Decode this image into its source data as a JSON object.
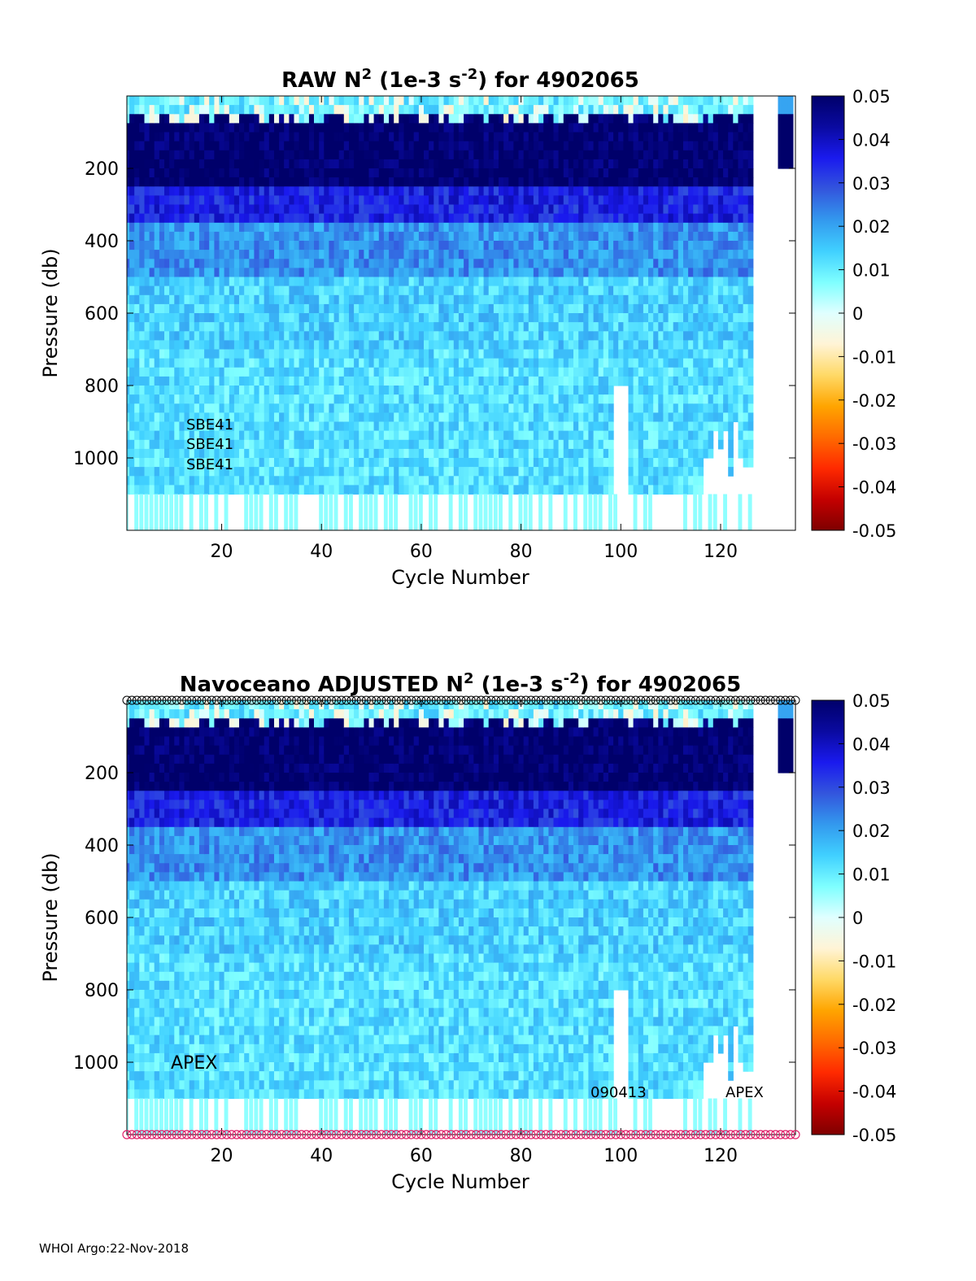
{
  "figure": {
    "footer": "WHOI Argo:22-Nov-2018"
  },
  "colorbar": {
    "ticks": [
      "0.05",
      "0.04",
      "0.03",
      "0.02",
      "0.01",
      "0",
      "-0.01",
      "-0.02",
      "-0.03",
      "-0.04",
      "-0.05"
    ],
    "colors": [
      "#7f0000",
      "#c40000",
      "#ff2a00",
      "#ff6a00",
      "#ffa500",
      "#ffd966",
      "#fff4d6",
      "#e0ffff",
      "#7fffff",
      "#40d0ff",
      "#3399ee",
      "#3355dd",
      "#1a1aee",
      "#0a0aa0",
      "#00006a"
    ]
  },
  "chart_data": [
    {
      "type": "heatmap",
      "title": "RAW N² (1e-3 s⁻²) for 4902065",
      "title_parts": {
        "lead": "RAW N",
        "sup1": "2",
        "mid": " (1e-3 s",
        "sup2": "-2",
        "tail": ") for 4902065"
      },
      "xlabel": "Cycle Number",
      "ylabel": "Pressure (db)",
      "xlim": [
        1,
        135
      ],
      "ylim": [
        0,
        1200
      ],
      "y_reversed": true,
      "xticks": [
        20,
        40,
        60,
        80,
        100,
        120
      ],
      "yticks": [
        200,
        400,
        600,
        800,
        1000
      ],
      "clim": [
        -0.05,
        0.05
      ],
      "colormap": "blue-cyan-white-orange-red (reversed jet)",
      "value_bands": [
        {
          "p_top": 0,
          "p_bottom": 50,
          "n2": 0.01
        },
        {
          "p_top": 50,
          "p_bottom": 250,
          "n2": 0.05
        },
        {
          "p_top": 250,
          "p_bottom": 350,
          "n2": 0.035
        },
        {
          "p_top": 350,
          "p_bottom": 500,
          "n2": 0.022
        },
        {
          "p_top": 500,
          "p_bottom": 700,
          "n2": 0.014
        },
        {
          "p_top": 700,
          "p_bottom": 1100,
          "n2": 0.012
        }
      ],
      "last_profile_cycle": 126,
      "annotations": [
        "SBE41",
        "SBE41",
        "SBE41"
      ]
    },
    {
      "type": "heatmap",
      "title": "Navoceano  ADJUSTED N² (1e-3 s⁻²) for 4902065",
      "title_parts": {
        "lead": "Navoceano  ADJUSTED N",
        "sup1": "2",
        "mid": " (1e-3 s",
        "sup2": "-2",
        "tail": ") for 4902065"
      },
      "xlabel": "Cycle Number",
      "ylabel": "Pressure (db)",
      "xlim": [
        1,
        135
      ],
      "ylim": [
        0,
        1200
      ],
      "y_reversed": true,
      "xticks": [
        20,
        40,
        60,
        80,
        100,
        120
      ],
      "yticks": [
        200,
        400,
        600,
        800,
        1000
      ],
      "clim": [
        -0.05,
        0.05
      ],
      "colormap": "blue-cyan-white-orange-red (reversed jet)",
      "value_bands": [
        {
          "p_top": 0,
          "p_bottom": 50,
          "n2": 0.01
        },
        {
          "p_top": 50,
          "p_bottom": 250,
          "n2": 0.05
        },
        {
          "p_top": 250,
          "p_bottom": 350,
          "n2": 0.035
        },
        {
          "p_top": 350,
          "p_bottom": 500,
          "n2": 0.022
        },
        {
          "p_top": 500,
          "p_bottom": 700,
          "n2": 0.014
        },
        {
          "p_top": 700,
          "p_bottom": 1100,
          "n2": 0.012
        }
      ],
      "last_profile_cycle": 126,
      "qc_marker_color_top": "#000000",
      "qc_marker_color_bottom": "#e0206a",
      "annotations": [
        "APEX",
        "090413",
        "APEX"
      ]
    }
  ]
}
